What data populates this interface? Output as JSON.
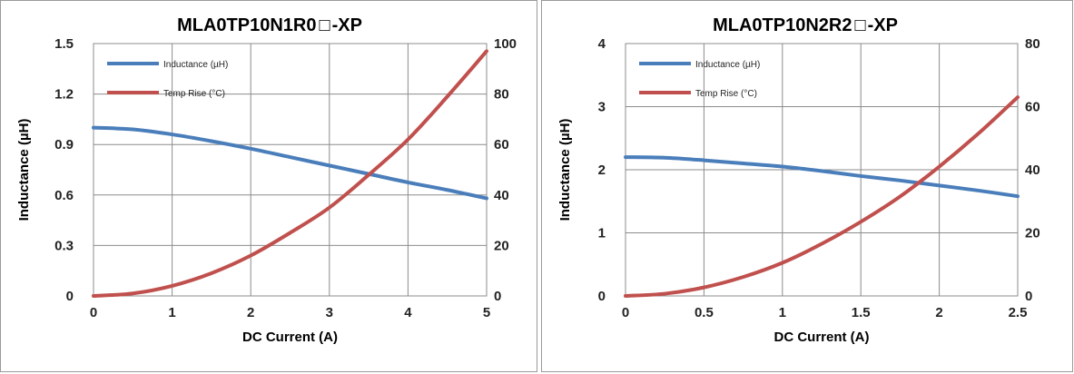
{
  "chart_data": [
    {
      "type": "line",
      "title": "MLA0TP10N1R0",
      "title_suffix": "-XP",
      "xlabel": "DC Current (A)",
      "ylabel": "Inductance (µH)",
      "xlim": [
        0,
        5
      ],
      "ylim": [
        0,
        1.5
      ],
      "y2lim": [
        0,
        100
      ],
      "x_ticks": [
        "0",
        "1",
        "2",
        "3",
        "4",
        "5"
      ],
      "y_ticks": [
        "0",
        "0.3",
        "0.6",
        "0.9",
        "1.2",
        "1.5"
      ],
      "y2_ticks": [
        "0",
        "20",
        "40",
        "60",
        "80",
        "100"
      ],
      "grid": true,
      "legend_position": "top-left",
      "series": [
        {
          "name": "Inductance (µH)",
          "axis": "left",
          "color": "#4a7ebb",
          "x": [
            0,
            0.5,
            1,
            1.5,
            2,
            2.5,
            3,
            3.5,
            4,
            4.5,
            5
          ],
          "y": [
            1.0,
            0.99,
            0.96,
            0.92,
            0.875,
            0.825,
            0.775,
            0.725,
            0.675,
            0.63,
            0.58
          ]
        },
        {
          "name": "Temp Rise (°C)",
          "axis": "right",
          "color": "#c0504d",
          "x": [
            0,
            0.5,
            1,
            1.5,
            2,
            2.5,
            3,
            3.5,
            4,
            4.5,
            5
          ],
          "y": [
            0,
            1,
            4,
            9,
            16,
            25,
            35,
            48,
            62,
            79,
            97
          ]
        }
      ]
    },
    {
      "type": "line",
      "title": "MLA0TP10N2R2",
      "title_suffix": "-XP",
      "xlabel": "DC Current (A)",
      "ylabel": "Inductance (µH)",
      "xlim": [
        0,
        2.5
      ],
      "ylim": [
        0,
        4
      ],
      "y2lim": [
        0,
        80
      ],
      "x_ticks": [
        "0",
        "0.5",
        "1",
        "1.5",
        "2",
        "2.5"
      ],
      "y_ticks": [
        "0",
        "1",
        "2",
        "3",
        "4"
      ],
      "y2_ticks": [
        "0",
        "20",
        "40",
        "60",
        "80"
      ],
      "grid": true,
      "legend_position": "top-left",
      "series": [
        {
          "name": "Inductance (µH)",
          "axis": "left",
          "color": "#4a7ebb",
          "x": [
            0,
            0.25,
            0.5,
            0.75,
            1,
            1.25,
            1.5,
            1.75,
            2,
            2.25,
            2.5
          ],
          "y": [
            2.2,
            2.19,
            2.15,
            2.1,
            2.05,
            1.98,
            1.9,
            1.83,
            1.75,
            1.67,
            1.58
          ]
        },
        {
          "name": "Temp Rise (°C)",
          "axis": "right",
          "color": "#c0504d",
          "x": [
            0,
            0.25,
            0.5,
            0.75,
            1,
            1.25,
            1.5,
            1.75,
            2,
            2.25,
            2.5
          ],
          "y": [
            0,
            0.7,
            2.7,
            6,
            10.5,
            16.5,
            23.5,
            31.5,
            41,
            51.5,
            63
          ]
        }
      ]
    }
  ]
}
